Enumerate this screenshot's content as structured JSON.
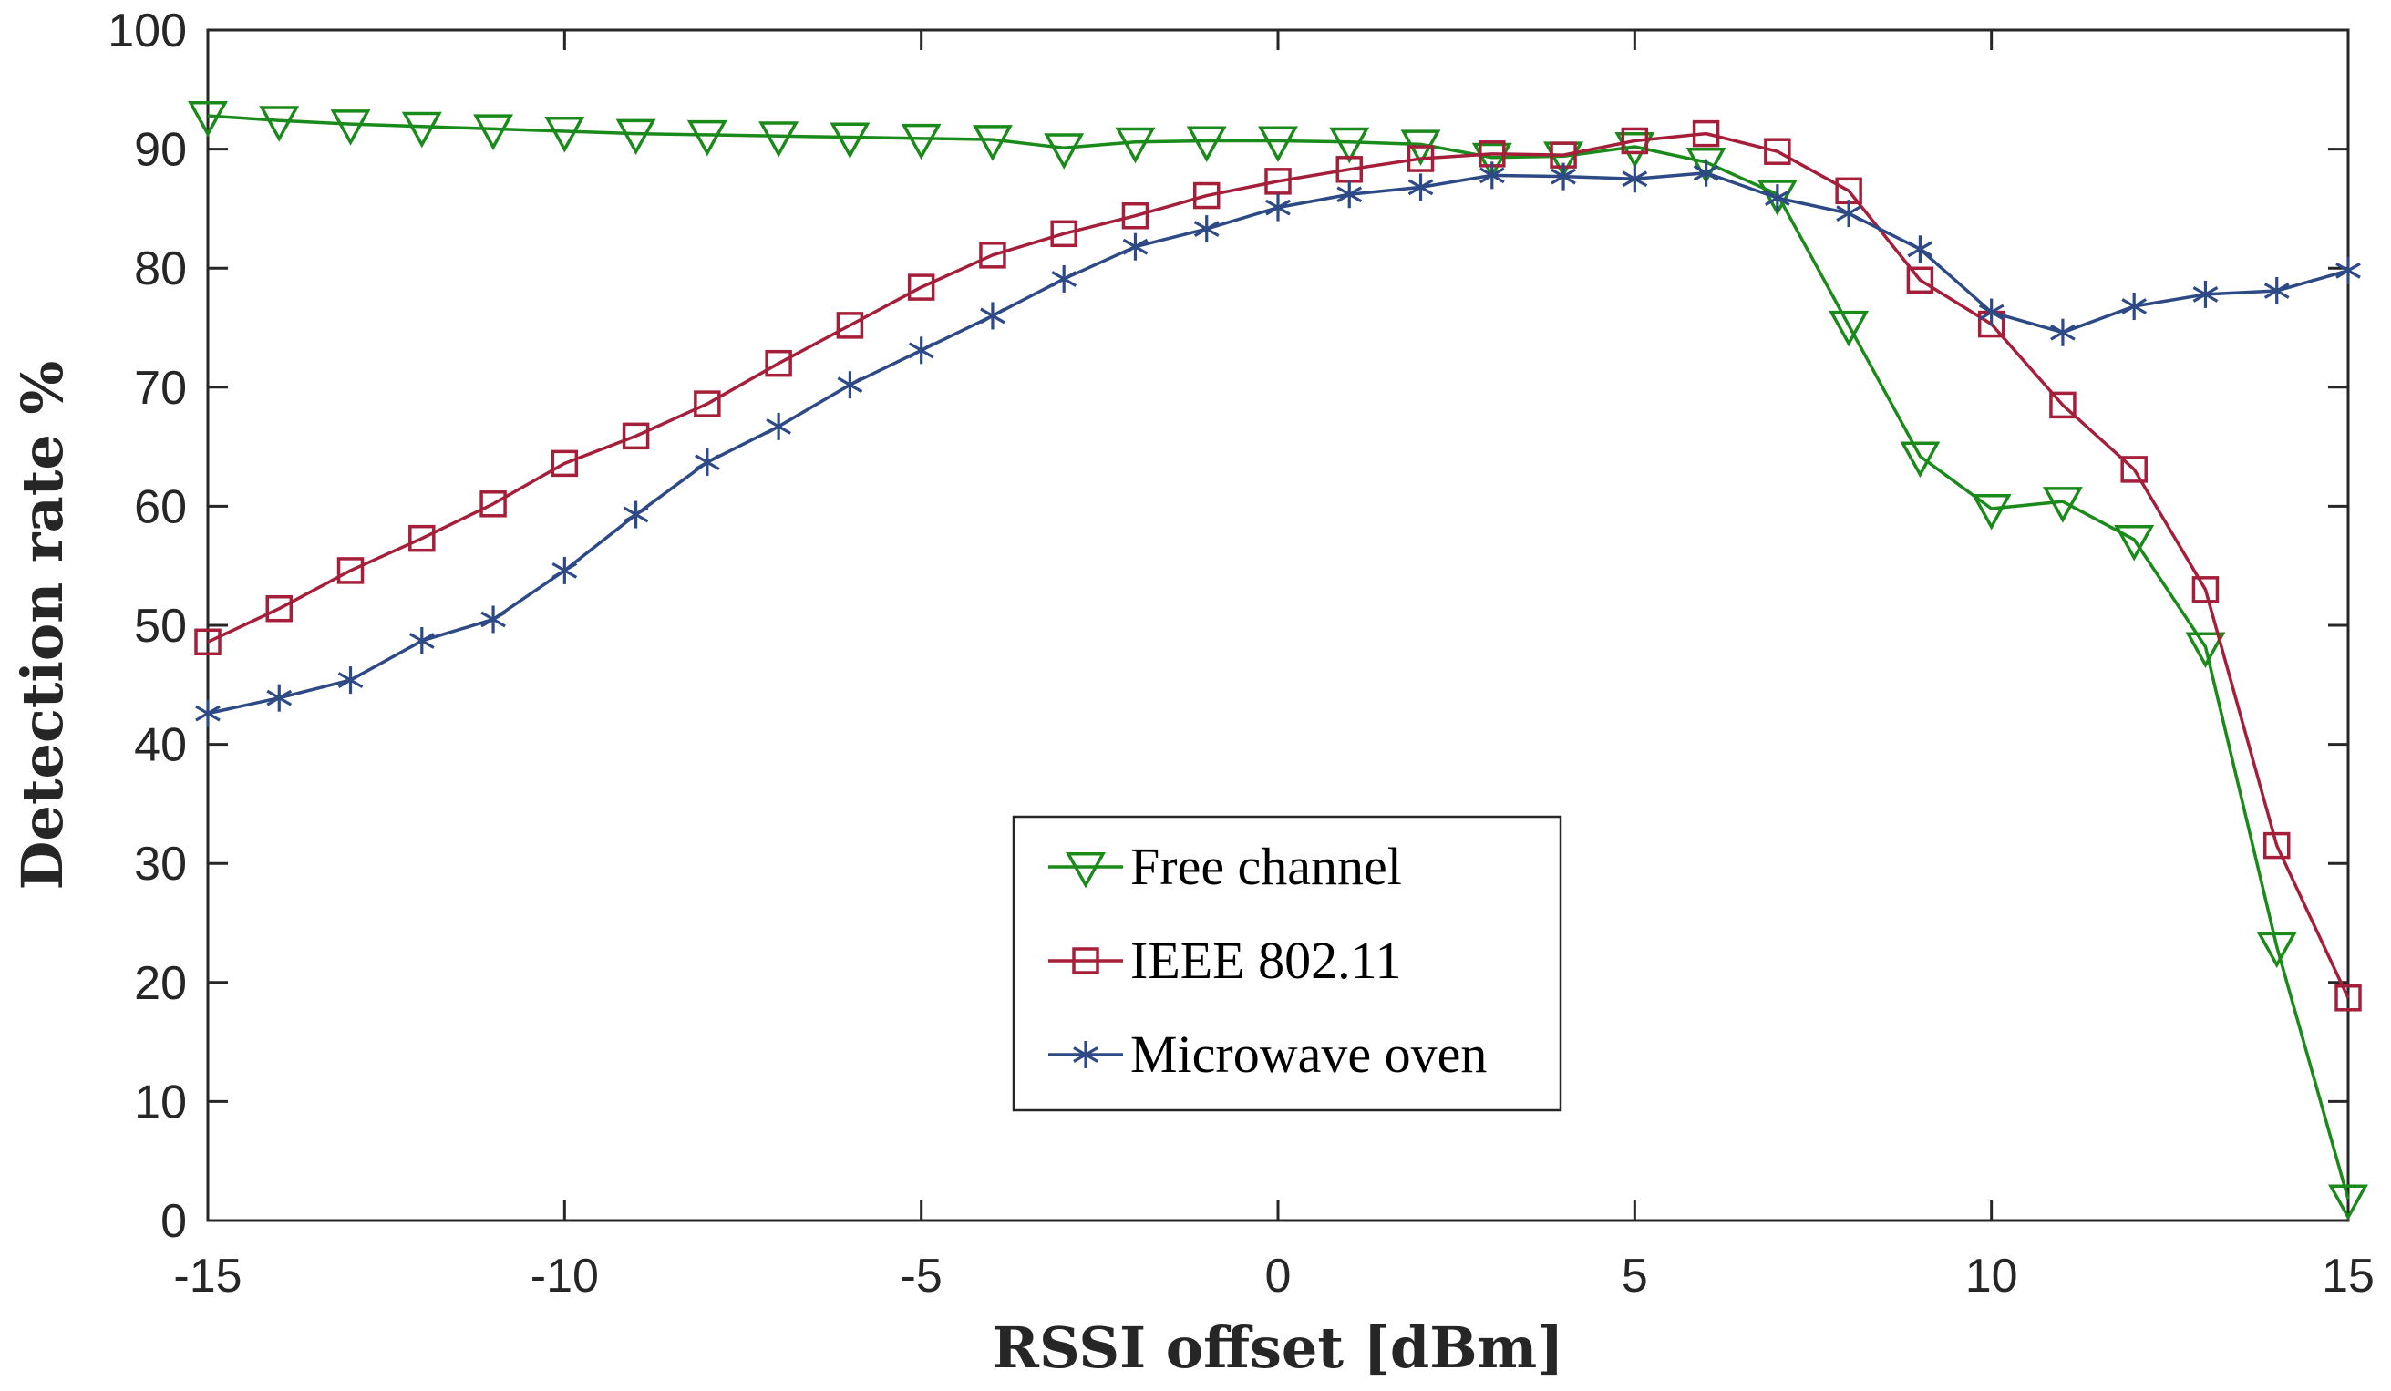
{
  "chart_data": {
    "type": "line",
    "title": "",
    "xlabel": "RSSI offset [dBm]",
    "ylabel": "Detection rate %",
    "xlim": [
      -15,
      15
    ],
    "ylim": [
      0,
      100
    ],
    "xticks": [
      -15,
      -10,
      -5,
      0,
      5,
      10,
      15
    ],
    "yticks": [
      0,
      10,
      20,
      30,
      40,
      50,
      60,
      70,
      80,
      90,
      100
    ],
    "grid": false,
    "legend_location": "lower-center",
    "x": [
      -15,
      -14,
      -13,
      -12,
      -11,
      -10,
      -9,
      -8,
      -7,
      -6,
      -5,
      -4,
      -3,
      -2,
      -1,
      0,
      1,
      2,
      3,
      4,
      5,
      6,
      7,
      8,
      9,
      10,
      11,
      12,
      13,
      14,
      15
    ],
    "series": [
      {
        "name": "Free channel",
        "color": "#1a8a1a",
        "marker": "triangle-down",
        "values": [
          92.8,
          92.4,
          92.1,
          91.9,
          91.7,
          91.5,
          91.3,
          91.2,
          91.1,
          91.0,
          90.9,
          90.8,
          90.1,
          90.6,
          90.7,
          90.7,
          90.6,
          90.4,
          89.3,
          89.4,
          90.2,
          88.9,
          86.2,
          75.2,
          64.2,
          59.8,
          60.4,
          57.2,
          48.2,
          23.0,
          1.8
        ]
      },
      {
        "name": "IEEE 802.11",
        "color": "#a51f3a",
        "marker": "square",
        "values": [
          48.6,
          51.4,
          54.6,
          57.3,
          60.2,
          63.6,
          65.9,
          68.6,
          72.0,
          75.2,
          78.4,
          81.1,
          82.9,
          84.4,
          86.1,
          87.3,
          88.3,
          89.2,
          89.6,
          89.5,
          90.7,
          91.3,
          89.8,
          86.5,
          79.0,
          75.3,
          68.5,
          63.1,
          53.0,
          31.5,
          18.7
        ]
      },
      {
        "name": "Microwave oven",
        "color": "#2e4a86",
        "marker": "asterisk",
        "values": [
          42.6,
          43.9,
          45.4,
          48.7,
          50.5,
          54.6,
          59.3,
          63.7,
          66.7,
          70.2,
          73.1,
          76.0,
          79.1,
          81.8,
          83.3,
          85.1,
          86.2,
          86.8,
          87.8,
          87.7,
          87.5,
          88.0,
          85.9,
          84.6,
          81.6,
          76.3,
          74.6,
          76.8,
          77.8,
          78.1,
          79.8
        ]
      }
    ]
  }
}
